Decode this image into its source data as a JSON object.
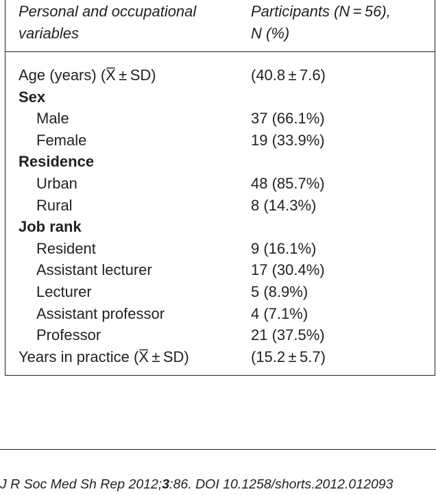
{
  "table": {
    "header": [
      [
        "Personal and occupational",
        "variables"
      ],
      [
        "Participants (N = 56),",
        "N (%)"
      ]
    ],
    "rows": [
      {
        "label": "Age (years) (X̅ ± SD)",
        "value": "(40.8 ± 7.6)"
      },
      {
        "label": "Sex",
        "items": [
          {
            "label": "Male",
            "value": "37 (66.1%)"
          },
          {
            "label": "Female",
            "value": "19 (33.9%)"
          }
        ]
      },
      {
        "label": "Residence",
        "items": [
          {
            "label": "Urban",
            "value": "48 (85.7%)"
          },
          {
            "label": "Rural",
            "value": "8 (14.3%)"
          }
        ]
      },
      {
        "label": "Job rank",
        "items": [
          {
            "label": "Resident",
            "value": "9 (16.1%)"
          },
          {
            "label": "Assistant lecturer",
            "value": "17 (30.4%)"
          },
          {
            "label": "Lecturer",
            "value": "5 (8.9%)"
          },
          {
            "label": "Assistant professor",
            "value": "4 (7.1%)"
          },
          {
            "label": "Professor",
            "value": "21 (37.5%)"
          }
        ]
      },
      {
        "label": "Years in practice (X̅ ± SD)",
        "value": "(15.2 ± 5.7)"
      }
    ]
  },
  "footer": {
    "journal": "J R Soc Med Sh Rep 2012;",
    "volume": "3",
    "rest": ":86. DOI 10.1258/shorts.2012.012093"
  }
}
